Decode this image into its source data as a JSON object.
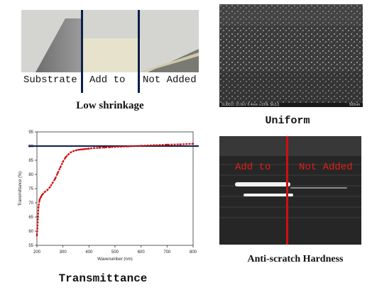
{
  "panels": {
    "shrinkage": {
      "labels": [
        "Substrate",
        "Add to",
        "Not Added"
      ],
      "caption": "Low shrinkage"
    },
    "sem": {
      "info_text": "SU8010 10.0kV 8.4mm x100k SE(U)",
      "scale_text": "500nm",
      "caption": "Uniform"
    },
    "transmittance": {
      "caption": "Transmittance"
    },
    "scratch": {
      "labels": [
        "Add to",
        "Not Added"
      ],
      "caption": "Anti-scratch Hardness"
    }
  },
  "colors": {
    "divider": "#0c1e4a",
    "curve": "#d01010",
    "reference_line": "#0c1e4a",
    "scratch_text": "#e0201a"
  },
  "chart_data": {
    "type": "line",
    "xlabel": "Wavenumber (nm)",
    "ylabel": "Transmittance (%)",
    "xlim": [
      200,
      800
    ],
    "ylim": [
      55,
      95
    ],
    "x_ticks": [
      200,
      300,
      400,
      500,
      600,
      700,
      800
    ],
    "y_ticks": [
      55,
      60,
      65,
      70,
      75,
      80,
      85,
      90,
      95
    ],
    "reference_y": 90,
    "series": [
      {
        "x": [
          200,
          202,
          204,
          206,
          210,
          215,
          220,
          230,
          240,
          250,
          260,
          270,
          280,
          290,
          300,
          310,
          320,
          330,
          340,
          350,
          360,
          370,
          380,
          390,
          400,
          420,
          440,
          460,
          480,
          500,
          550,
          600,
          650,
          700,
          750,
          800
        ],
        "y": [
          58.5,
          61,
          65,
          68.5,
          71,
          72,
          72.8,
          73.8,
          74.5,
          75.5,
          77,
          78.5,
          80.5,
          82.5,
          84.5,
          86,
          87,
          87.8,
          88.2,
          88.5,
          88.7,
          88.8,
          88.9,
          89,
          89.1,
          89.3,
          89.4,
          89.5,
          89.6,
          89.7,
          89.9,
          90.1,
          90.3,
          90.5,
          90.6,
          90.8
        ]
      }
    ]
  }
}
